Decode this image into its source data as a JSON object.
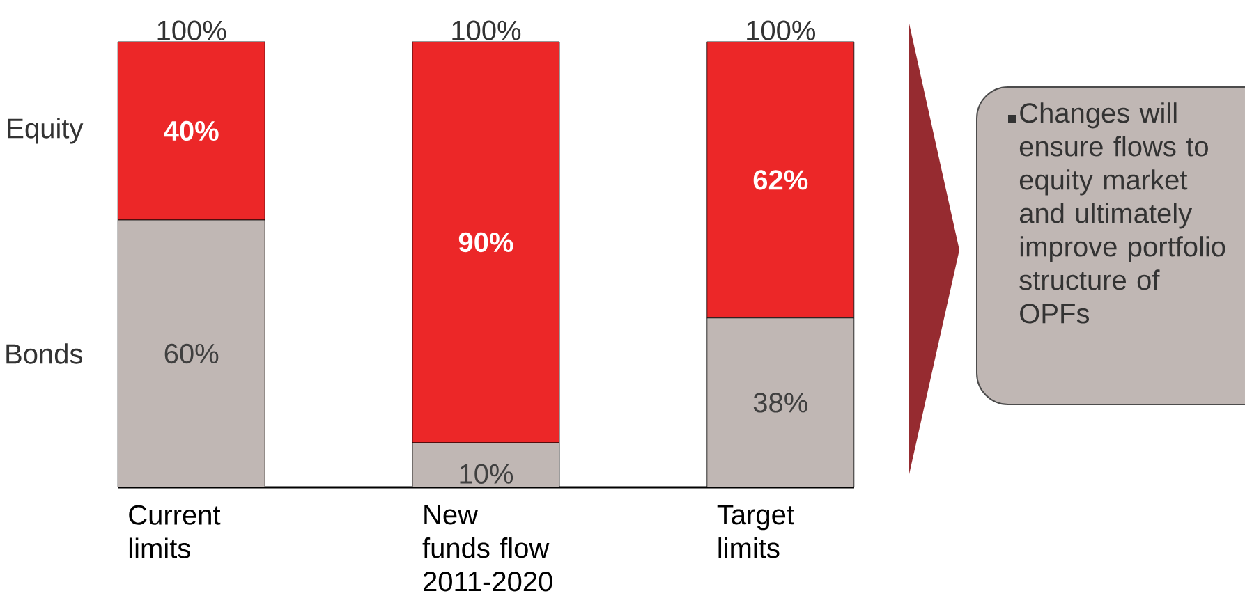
{
  "chart_data": {
    "type": "bar",
    "stacked": true,
    "legend": false,
    "categories": [
      "Current limits",
      "New funds flow 2011-2020",
      "Target limits"
    ],
    "series": [
      {
        "name": "Bonds",
        "color": "#c0b7b4",
        "values": [
          60,
          10,
          38
        ],
        "value_labels": [
          "60%",
          "10%",
          "38%"
        ]
      },
      {
        "name": "Equity",
        "color": "#ec2728",
        "values": [
          40,
          90,
          62
        ],
        "value_labels": [
          "40%",
          "90%",
          "62%"
        ]
      }
    ],
    "totals": [
      "100%",
      "100%",
      "100%"
    ],
    "annotations": [
      "Changes will ensure flows to equity market and ultimately improve portfolio structure of OPFs"
    ]
  }
}
